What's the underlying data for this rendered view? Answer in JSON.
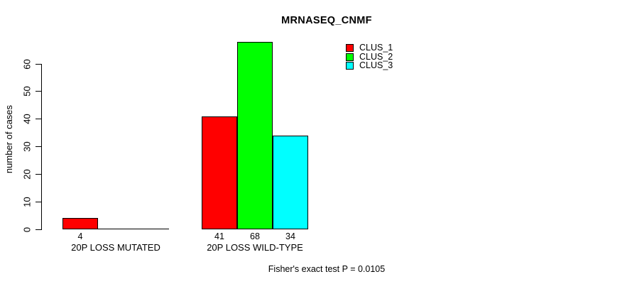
{
  "chart_data": {
    "type": "bar",
    "title": "MRNASEQ_CNMF",
    "xlabel": "",
    "ylabel": "number of cases",
    "categories": [
      "20P LOSS MUTATED",
      "20P LOSS WILD-TYPE"
    ],
    "series": [
      {
        "name": "CLUS_1",
        "color": "#ff0000",
        "values": [
          4,
          41
        ]
      },
      {
        "name": "CLUS_2",
        "color": "#00ff00",
        "values": [
          0,
          68
        ]
      },
      {
        "name": "CLUS_3",
        "color": "#00ffff",
        "values": [
          0,
          34
        ]
      }
    ],
    "bar_value_labels": [
      "4",
      "41",
      "68",
      "34"
    ],
    "yticks": [
      0,
      10,
      20,
      30,
      40,
      50,
      60
    ],
    "ylim": [
      0,
      68
    ],
    "grid": false,
    "legend_position": "top-right",
    "annotation": "Fisher's exact test P = 0.0105"
  }
}
